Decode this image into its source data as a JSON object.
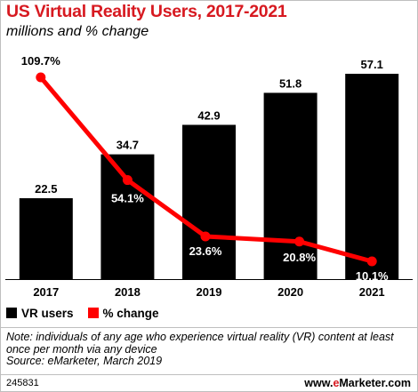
{
  "title": "US Virtual Reality Users, 2017-2021",
  "subtitle": "millions and % change",
  "colors": {
    "title": "#d71920",
    "bars": "#000000",
    "line": "#ff0000",
    "bar_label": "#000000",
    "line_label": "#000000"
  },
  "chart_data": {
    "type": "bar",
    "categories": [
      "2017",
      "2018",
      "2019",
      "2020",
      "2021"
    ],
    "series": [
      {
        "name": "VR users",
        "type": "bar",
        "values": [
          22.5,
          34.7,
          42.9,
          51.8,
          57.1
        ],
        "labels": [
          "22.5",
          "34.7",
          "42.9",
          "51.8",
          "57.1"
        ]
      },
      {
        "name": "% change",
        "type": "line",
        "values": [
          109.7,
          54.1,
          23.6,
          20.8,
          10.1
        ],
        "labels": [
          "109.7%",
          "54.1%",
          "23.6%",
          "20.8%",
          "10.1%"
        ]
      }
    ],
    "legend": "bottom-left",
    "grid": false
  },
  "legend": {
    "items": [
      {
        "label": "VR users",
        "color": "#000000"
      },
      {
        "label": "% change",
        "color": "#ff0000"
      }
    ]
  },
  "note": "Note: individuals of any age who experience virtual reality (VR) content at least once per month via any device",
  "source": "Source: eMarketer, March 2019",
  "chart_id": "245831",
  "brand": {
    "prefix": "www.",
    "accent": "e",
    "suffix": "Marketer.com"
  }
}
